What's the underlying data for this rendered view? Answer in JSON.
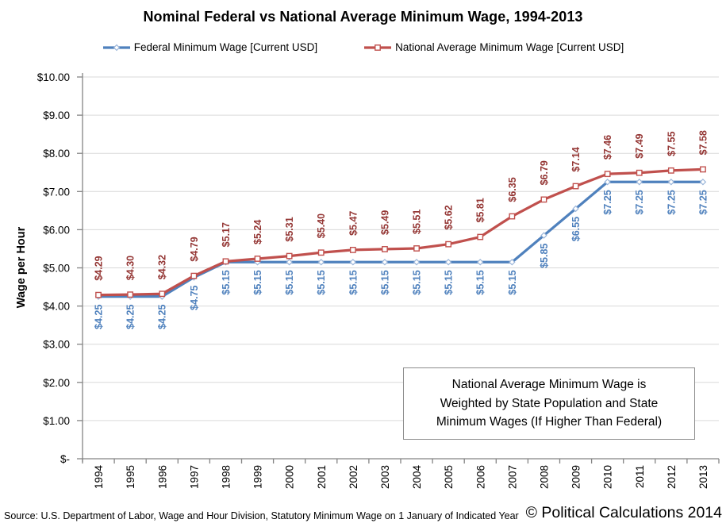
{
  "title": "Nominal Federal vs National Average Minimum Wage, 1994-2013",
  "legend": {
    "items": [
      {
        "label": "Federal Minimum Wage [Current USD]",
        "color": "#4F81BD",
        "marker": "diamond",
        "marker_stroke": "#9AB5D9"
      },
      {
        "label": "National Average Minimum Wage [Current USD]",
        "color": "#C0504D",
        "marker": "square",
        "marker_stroke": "#C0504D"
      }
    ]
  },
  "chart_data": {
    "type": "line",
    "title": "Nominal Federal vs National Average Minimum Wage, 1994-2013",
    "xlabel": "",
    "ylabel": "Wage per Hour",
    "ylim": [
      0,
      10
    ],
    "grid": true,
    "legend_position": "top",
    "categories": [
      "1994",
      "1995",
      "1996",
      "1997",
      "1998",
      "1999",
      "2000",
      "2001",
      "2002",
      "2003",
      "2004",
      "2005",
      "2006",
      "2007",
      "2008",
      "2009",
      "2010",
      "2011",
      "2012",
      "2013"
    ],
    "yticks": {
      "values": [
        0,
        1,
        2,
        3,
        4,
        5,
        6,
        7,
        8,
        9,
        10
      ],
      "labels": [
        "$-",
        "$1.00",
        "$2.00",
        "$3.00",
        "$4.00",
        "$5.00",
        "$6.00",
        "$7.00",
        "$8.00",
        "$9.00",
        "$10.00"
      ]
    },
    "series": [
      {
        "name": "Federal Minimum Wage [Current USD]",
        "color": "#4F81BD",
        "marker": "diamond",
        "marker_stroke": "#9AB5D9",
        "label_color": "#4F81BD",
        "label_position": "below",
        "values": [
          4.25,
          4.25,
          4.25,
          4.75,
          5.15,
          5.15,
          5.15,
          5.15,
          5.15,
          5.15,
          5.15,
          5.15,
          5.15,
          5.15,
          5.85,
          6.55,
          7.25,
          7.25,
          7.25,
          7.25
        ],
        "labels": [
          "$4.25",
          "$4.25",
          "$4.25",
          "$4.75",
          "$5.15",
          "$5.15",
          "$5.15",
          "$5.15",
          "$5.15",
          "$5.15",
          "$5.15",
          "$5.15",
          "$5.15",
          "$5.15",
          "$5.85",
          "$6.55",
          "$7.25",
          "$7.25",
          "$7.25",
          "$7.25"
        ]
      },
      {
        "name": "National Average Minimum Wage [Current USD]",
        "color": "#C0504D",
        "marker": "square",
        "marker_stroke": "#C0504D",
        "label_color": "#943634",
        "label_position": "above",
        "values": [
          4.29,
          4.3,
          4.32,
          4.79,
          5.17,
          5.24,
          5.31,
          5.4,
          5.47,
          5.49,
          5.51,
          5.62,
          5.81,
          6.35,
          6.79,
          7.14,
          7.46,
          7.49,
          7.55,
          7.58
        ],
        "labels": [
          "$4.29",
          "$4.30",
          "$4.32",
          "$4.79",
          "$5.17",
          "$5.24",
          "$5.31",
          "$5.40",
          "$5.47",
          "$5.49",
          "$5.51",
          "$5.62",
          "$5.81",
          "$6.35",
          "$6.79",
          "$7.14",
          "$7.46",
          "$7.49",
          "$7.55",
          "$7.58"
        ]
      }
    ],
    "annotation": "National Average Minimum Wage is Weighted by State Population and State Minimum Wages (If Higher Than Federal)"
  },
  "annotation": {
    "lines": [
      "National Average Minimum Wage is",
      "Weighted by State Population and State",
      "Minimum Wages (If Higher Than Federal)"
    ]
  },
  "footer": {
    "source": "Source: U.S. Department of Labor, Wage and Hour Division, Statutory Minimum Wage on 1 January of Indicated Year",
    "copyright": "© Political Calculations 2014"
  },
  "colors": {
    "gridline": "#D9D9D9",
    "axis": "#848484",
    "tick_text": "#000000",
    "annotation_border": "#8C8C8C"
  }
}
